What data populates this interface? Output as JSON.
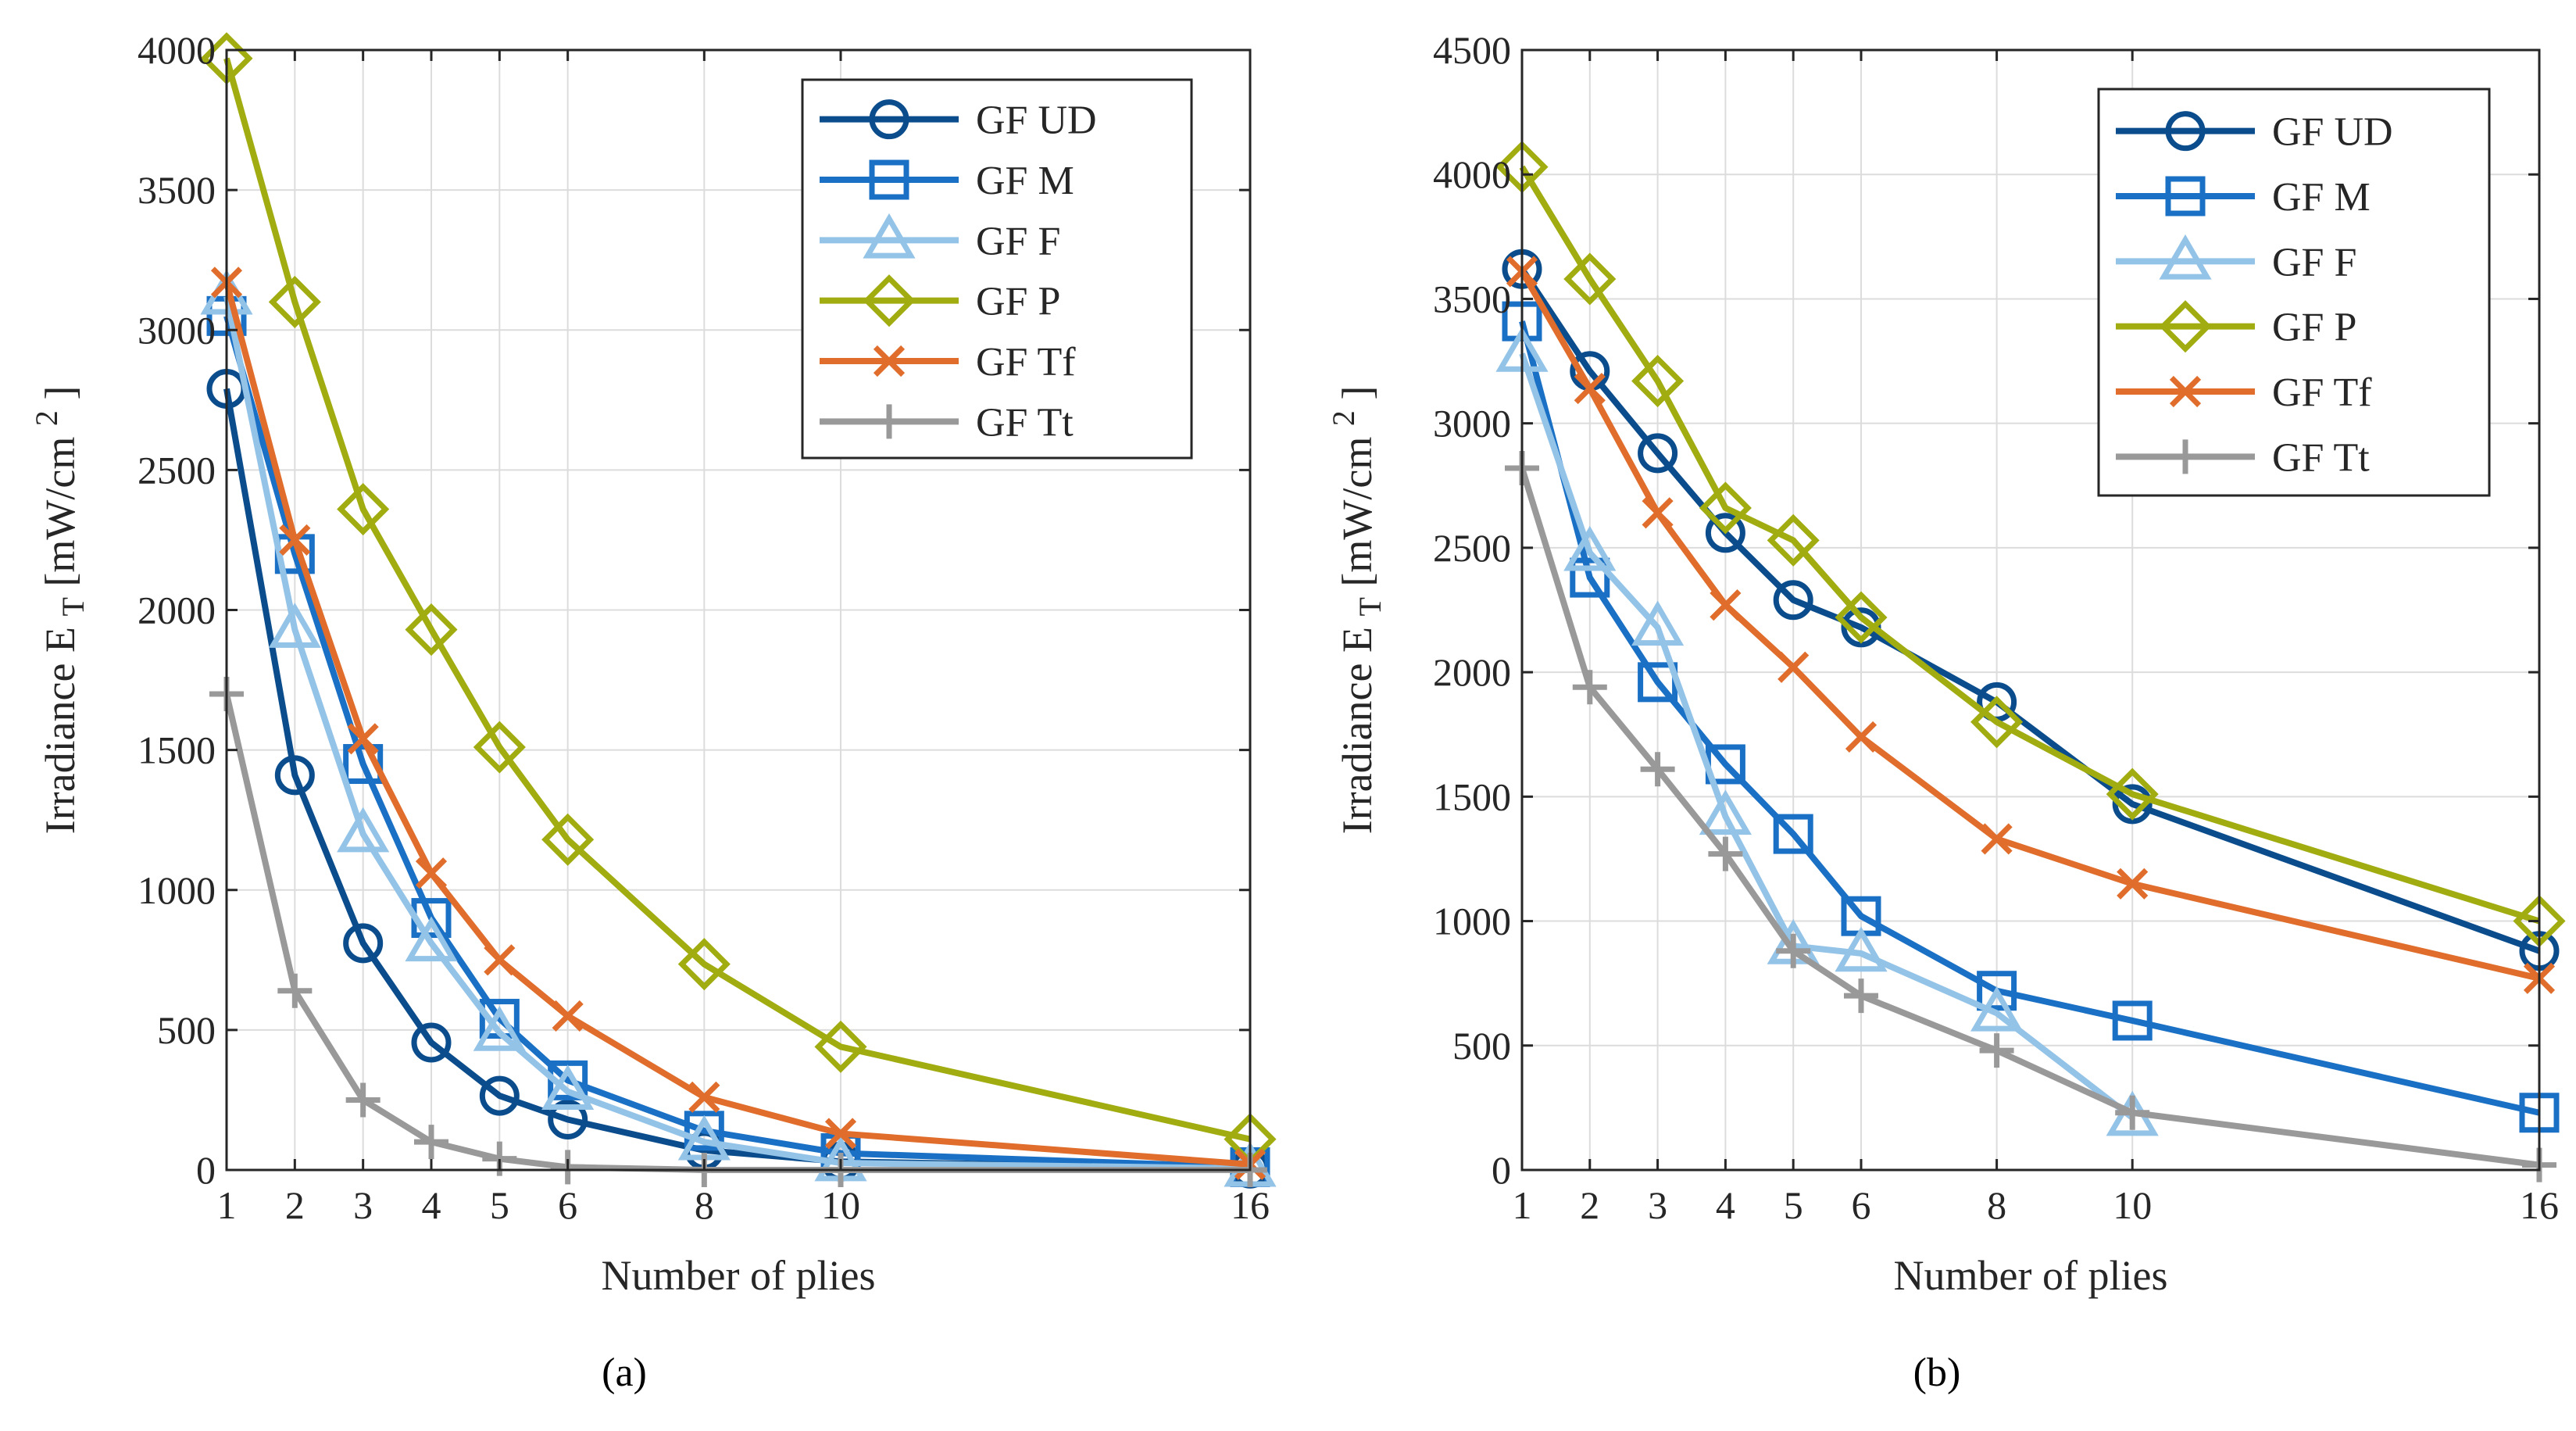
{
  "figure": {
    "captions": [
      "(a)",
      "(b)"
    ]
  },
  "chart_data": [
    {
      "type": "line",
      "panel": "a",
      "title": "",
      "xlabel": "Number of plies",
      "ylabel_main": "Irradiance E",
      "ylabel_sub": "T",
      "ylabel_unit_pre": " [mW/cm",
      "ylabel_unit_sup": "2",
      "ylabel_unit_post": "]",
      "x": [
        1,
        2,
        3,
        4,
        5,
        6,
        8,
        10,
        16
      ],
      "xlim": [
        1,
        16
      ],
      "ylim": [
        0,
        4000
      ],
      "xticks": [
        1,
        2,
        3,
        4,
        5,
        6,
        8,
        10,
        16
      ],
      "yticks": [
        0,
        500,
        1000,
        1500,
        2000,
        2500,
        3000,
        3500,
        4000
      ],
      "grid": true,
      "legend_position": "top-right",
      "series": [
        {
          "name": "GF UD",
          "color": "#0b4d8c",
          "marker": "circle",
          "values": [
            2790,
            1410,
            810,
            455,
            265,
            180,
            70,
            30,
            5
          ]
        },
        {
          "name": "GF M",
          "color": "#1a70c4",
          "marker": "square",
          "values": [
            3050,
            2200,
            1450,
            900,
            540,
            320,
            140,
            60,
            10
          ]
        },
        {
          "name": "GF F",
          "color": "#94c3e8",
          "marker": "triangle",
          "values": [
            3120,
            1930,
            1200,
            810,
            490,
            280,
            100,
            25,
            5
          ]
        },
        {
          "name": "GF P",
          "color": "#a1ac10",
          "marker": "diamond",
          "values": [
            3970,
            3100,
            2360,
            1930,
            1510,
            1180,
            735,
            440,
            110
          ]
        },
        {
          "name": "GF Tf",
          "color": "#e06d2b",
          "marker": "x",
          "values": [
            3170,
            2250,
            1540,
            1060,
            750,
            550,
            260,
            130,
            20
          ]
        },
        {
          "name": "GF Tt",
          "color": "#999999",
          "marker": "plus",
          "values": [
            1700,
            640,
            250,
            100,
            40,
            10,
            0,
            0,
            0
          ]
        }
      ]
    },
    {
      "type": "line",
      "panel": "b",
      "title": "",
      "xlabel": "Number of plies",
      "ylabel_main": "Irradiance E",
      "ylabel_sub": "T",
      "ylabel_unit_pre": " [mW/cm",
      "ylabel_unit_sup": "2",
      "ylabel_unit_post": "]",
      "x": [
        1,
        2,
        3,
        4,
        5,
        6,
        8,
        10,
        16
      ],
      "xlim": [
        1,
        16
      ],
      "ylim": [
        0,
        4500
      ],
      "xticks": [
        1,
        2,
        3,
        4,
        5,
        6,
        8,
        10,
        16
      ],
      "yticks": [
        0,
        500,
        1000,
        1500,
        2000,
        2500,
        3000,
        3500,
        4000,
        4500
      ],
      "grid": true,
      "legend_position": "top-right",
      "series": [
        {
          "name": "GF UD",
          "color": "#0b4d8c",
          "marker": "circle",
          "values": [
            3620,
            3210,
            2880,
            2560,
            2290,
            2180,
            1880,
            1470,
            880
          ]
        },
        {
          "name": "GF M",
          "color": "#1a70c4",
          "marker": "square",
          "values": [
            3410,
            2380,
            1960,
            1630,
            1350,
            1020,
            720,
            600,
            230
          ]
        },
        {
          "name": "GF F",
          "color": "#94c3e8",
          "marker": "triangle",
          "values": [
            3280,
            2480,
            2180,
            1420,
            900,
            870,
            630,
            210,
            null
          ]
        },
        {
          "name": "GF P",
          "color": "#a1ac10",
          "marker": "diamond",
          "values": [
            4030,
            3580,
            3170,
            2660,
            2530,
            2220,
            1800,
            1510,
            1000
          ]
        },
        {
          "name": "GF Tf",
          "color": "#e06d2b",
          "marker": "x",
          "values": [
            3610,
            3140,
            2640,
            2270,
            2020,
            1740,
            1330,
            1150,
            770
          ]
        },
        {
          "name": "GF Tt",
          "color": "#999999",
          "marker": "plus",
          "values": [
            2820,
            1940,
            1610,
            1270,
            880,
            700,
            480,
            230,
            20
          ]
        }
      ]
    }
  ]
}
